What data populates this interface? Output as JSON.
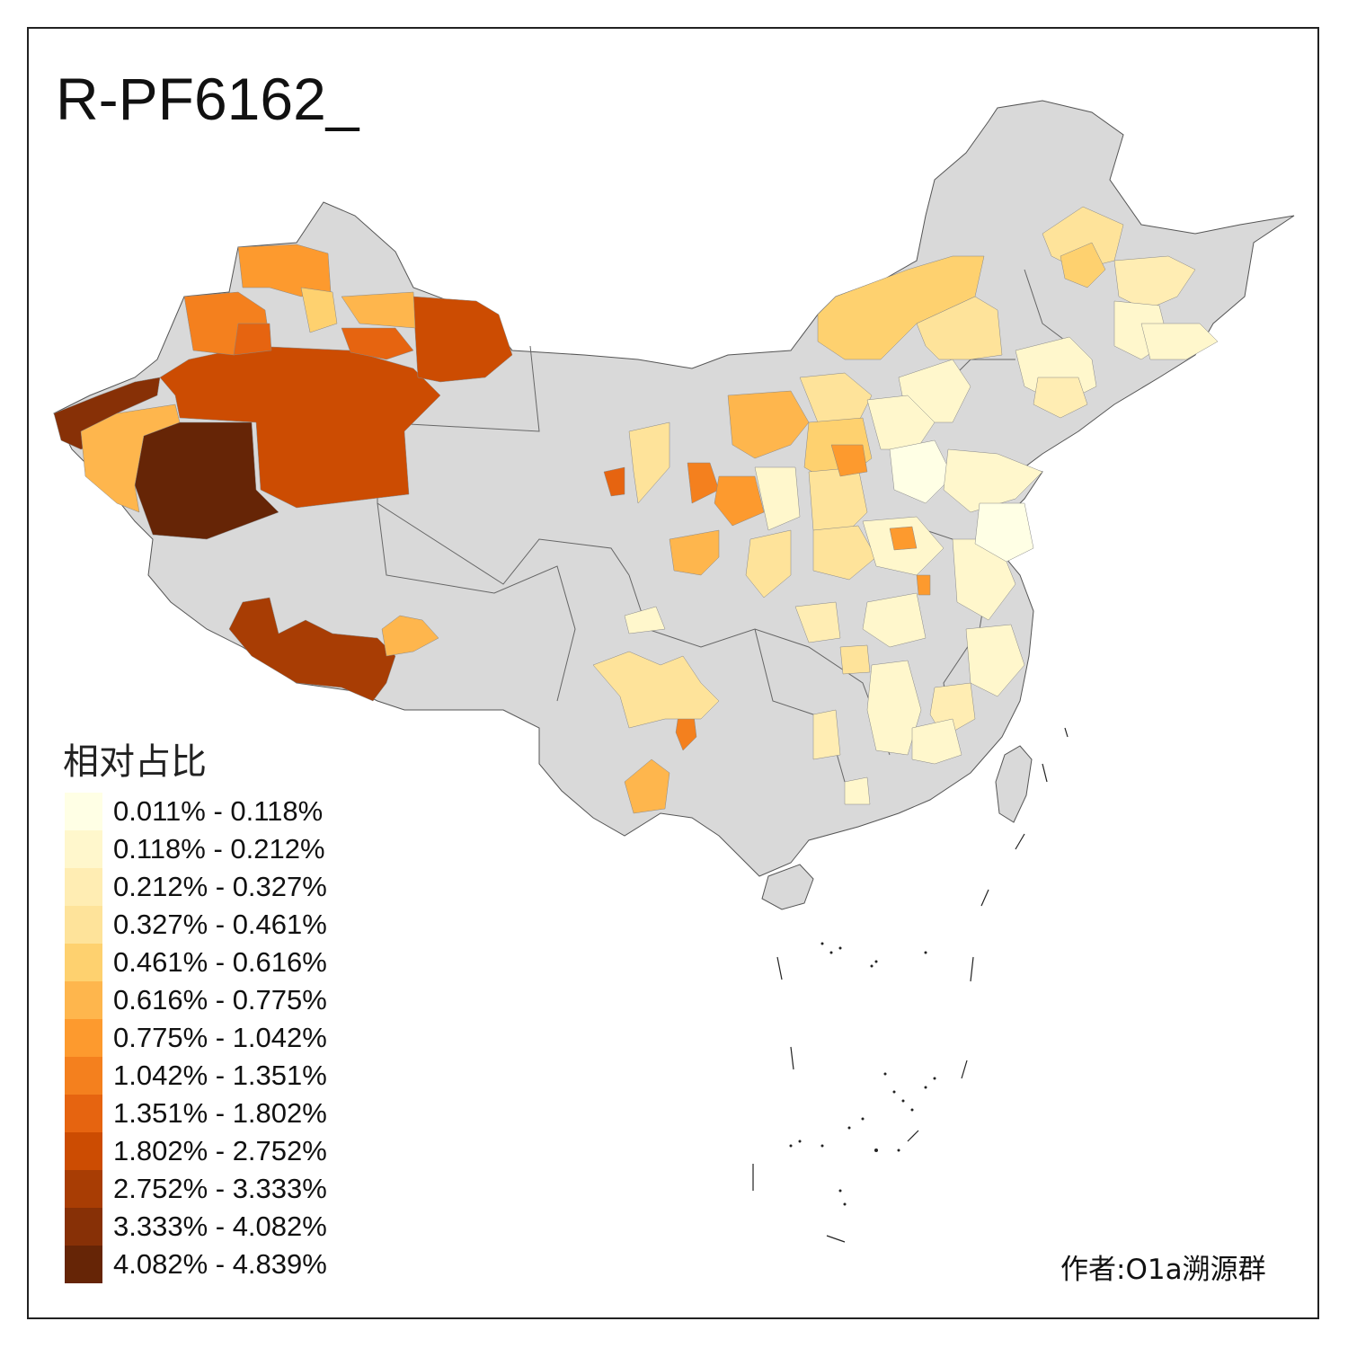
{
  "title": "R-PF6162_",
  "legend": {
    "title": "相对占比",
    "items": [
      {
        "label": "0.011% - 0.118%",
        "color": "#ffffe5"
      },
      {
        "label": "0.118% - 0.212%",
        "color": "#fff7cc"
      },
      {
        "label": "0.212% - 0.327%",
        "color": "#ffedb3"
      },
      {
        "label": "0.327% - 0.461%",
        "color": "#fee39a"
      },
      {
        "label": "0.461% - 0.616%",
        "color": "#fed16f"
      },
      {
        "label": "0.616% - 0.775%",
        "color": "#feb64d"
      },
      {
        "label": "0.775% - 1.042%",
        "color": "#fd9a2e"
      },
      {
        "label": "1.042% - 1.351%",
        "color": "#f4801e"
      },
      {
        "label": "1.351% - 1.802%",
        "color": "#e66410"
      },
      {
        "label": "1.802% - 2.752%",
        "color": "#cc4c02"
      },
      {
        "label": "2.752% - 3.333%",
        "color": "#a83d04"
      },
      {
        "label": "3.333% - 4.082%",
        "color": "#873006"
      },
      {
        "label": "4.082% - 4.839%",
        "color": "#662506"
      }
    ]
  },
  "author": "作者:O1a溯源群",
  "no_data_color": "#d9d9d9"
}
